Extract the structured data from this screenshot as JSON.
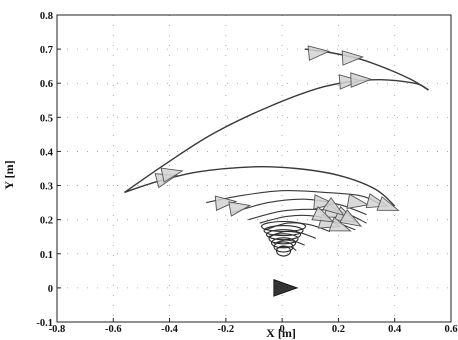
{
  "chart_data": {
    "type": "line",
    "title": "",
    "xlabel": "X [m]",
    "ylabel": "Y [m]",
    "xlim": [
      -0.8,
      0.6
    ],
    "ylim": [
      -0.1,
      0.8
    ],
    "xticks": [
      "-0.8",
      "-0.6",
      "-0.4",
      "-0.2",
      "0",
      "0.2",
      "0.4",
      "0.6"
    ],
    "yticks": [
      "-0.1",
      "0",
      "0.1",
      "0.2",
      "0.3",
      "0.4",
      "0.5",
      "0.6",
      "0.7",
      "0.8"
    ],
    "grid": "dotted",
    "legend": "none",
    "colors": {
      "path": "#3a3a3a",
      "marker_fill": "#d2d2d2",
      "marker_edge": "#555555",
      "origin_marker": "#111111"
    },
    "series": [
      {
        "x": [
          -0.56,
          -0.42,
          -0.25,
          -0.05,
          0.15,
          0.32,
          0.47,
          0.52
        ],
        "y": [
          0.28,
          0.36,
          0.45,
          0.53,
          0.59,
          0.61,
          0.6,
          0.58
        ]
      },
      {
        "x": [
          0.08,
          0.17,
          0.28,
          0.38,
          0.46,
          0.52
        ],
        "y": [
          0.7,
          0.69,
          0.67,
          0.64,
          0.61,
          0.58
        ]
      },
      {
        "x": [
          -0.56,
          -0.45,
          -0.3,
          -0.1,
          0.05,
          0.2,
          0.33,
          0.4
        ],
        "y": [
          0.28,
          0.31,
          0.34,
          0.355,
          0.35,
          0.33,
          0.29,
          0.24
        ]
      },
      {
        "x": [
          -0.27,
          -0.15,
          0.0,
          0.15,
          0.28,
          0.35
        ],
        "y": [
          0.25,
          0.27,
          0.285,
          0.28,
          0.27,
          0.245
        ]
      },
      {
        "x": [
          -0.18,
          -0.05,
          0.08,
          0.2,
          0.3
        ],
        "y": [
          0.22,
          0.25,
          0.26,
          0.245,
          0.215
        ]
      },
      {
        "x": [
          -0.12,
          0.0,
          0.12,
          0.22,
          0.3
        ],
        "y": [
          0.2,
          0.225,
          0.23,
          0.22,
          0.19
        ]
      },
      {
        "x": [
          -0.08,
          0.02,
          0.12,
          0.2,
          0.26
        ],
        "y": [
          0.19,
          0.21,
          0.21,
          0.19,
          0.17
        ]
      },
      {
        "x": [
          -0.06,
          0.02,
          0.1,
          0.17
        ],
        "y": [
          0.17,
          0.19,
          0.185,
          0.165
        ]
      },
      {
        "x": [
          -0.05,
          0.01,
          0.07,
          0.12
        ],
        "y": [
          0.15,
          0.165,
          0.16,
          0.145
        ]
      },
      {
        "x": [
          -0.03,
          0.01,
          0.05,
          0.08
        ],
        "y": [
          0.13,
          0.14,
          0.135,
          0.125
        ]
      },
      {
        "x": [
          -0.02,
          0.0,
          0.03,
          0.05
        ],
        "y": [
          0.115,
          0.12,
          0.12,
          0.11
        ]
      }
    ],
    "heading_markers": [
      {
        "x": 0.12,
        "y": 0.69,
        "dir": 5
      },
      {
        "x": 0.24,
        "y": 0.675,
        "dir": 3
      },
      {
        "x": 0.23,
        "y": 0.605,
        "dir": 4
      },
      {
        "x": 0.27,
        "y": 0.61,
        "dir": 2
      },
      {
        "x": -0.42,
        "y": 0.32,
        "dir": 15
      },
      {
        "x": -0.4,
        "y": 0.335,
        "dir": 12
      },
      {
        "x": 0.26,
        "y": 0.25,
        "dir": -10
      },
      {
        "x": 0.33,
        "y": 0.25,
        "dir": -15
      },
      {
        "x": 0.37,
        "y": 0.24,
        "dir": -20
      },
      {
        "x": -0.21,
        "y": 0.25,
        "dir": 5
      },
      {
        "x": -0.16,
        "y": 0.235,
        "dir": 10
      },
      {
        "x": 0.14,
        "y": 0.25,
        "dir": -5
      },
      {
        "x": 0.18,
        "y": 0.22,
        "dir": -20
      },
      {
        "x": 0.22,
        "y": 0.21,
        "dir": -25
      },
      {
        "x": 0.16,
        "y": 0.19,
        "dir": -15
      },
      {
        "x": 0.2,
        "y": 0.18,
        "dir": -20
      },
      {
        "x": 0.24,
        "y": 0.2,
        "dir": -30
      },
      {
        "x": 0.18,
        "y": 0.235,
        "dir": -35
      },
      {
        "x": 0.14,
        "y": 0.21,
        "dir": -25
      }
    ],
    "origin_marker": {
      "x": 0.0,
      "y": 0.0,
      "dir": 0
    }
  }
}
